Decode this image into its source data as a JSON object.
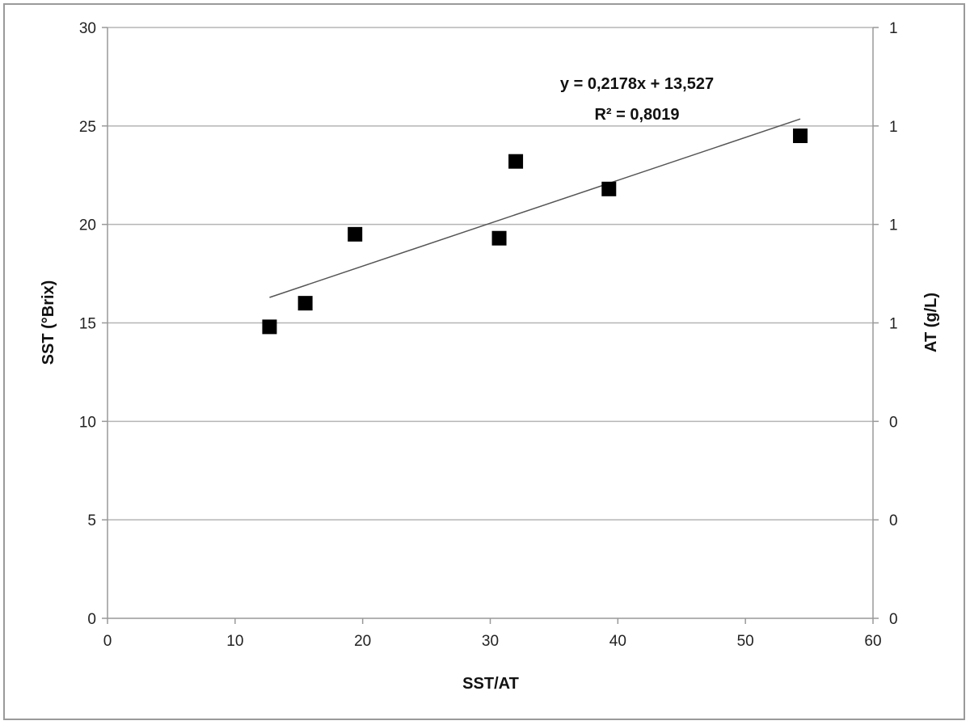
{
  "chart_data": {
    "type": "scatter",
    "xlabel": "SST/AT",
    "ylabel": "SST (°Brix)",
    "y2label": "AT (g/L)",
    "xlim": [
      0,
      60
    ],
    "ylim": [
      0,
      30
    ],
    "x_ticks": [
      "0",
      "10",
      "20",
      "30",
      "40",
      "50",
      "60"
    ],
    "y_ticks": [
      "0",
      "5",
      "10",
      "15",
      "20",
      "25",
      "30"
    ],
    "y2_ticks": [
      "0",
      "0",
      "0",
      "1",
      "1",
      "1",
      "1"
    ],
    "grid": true,
    "series": [
      {
        "marker": "square",
        "color": "#000000",
        "points": [
          {
            "x": 12.7,
            "y": 14.8
          },
          {
            "x": 15.5,
            "y": 16.0
          },
          {
            "x": 19.4,
            "y": 19.5
          },
          {
            "x": 30.7,
            "y": 19.3
          },
          {
            "x": 32.0,
            "y": 23.2
          },
          {
            "x": 39.3,
            "y": 21.8
          },
          {
            "x": 54.3,
            "y": 24.5
          }
        ]
      }
    ],
    "trendline": {
      "slope": 0.2178,
      "intercept": 13.527,
      "x_range": [
        12.7,
        54.3
      ],
      "equation": "y = 0,2178x + 13,527",
      "r2": "R² = 0,8019",
      "color": "#555555"
    },
    "gridline_color": "#b5b5b5",
    "axis_color": "#999999"
  }
}
